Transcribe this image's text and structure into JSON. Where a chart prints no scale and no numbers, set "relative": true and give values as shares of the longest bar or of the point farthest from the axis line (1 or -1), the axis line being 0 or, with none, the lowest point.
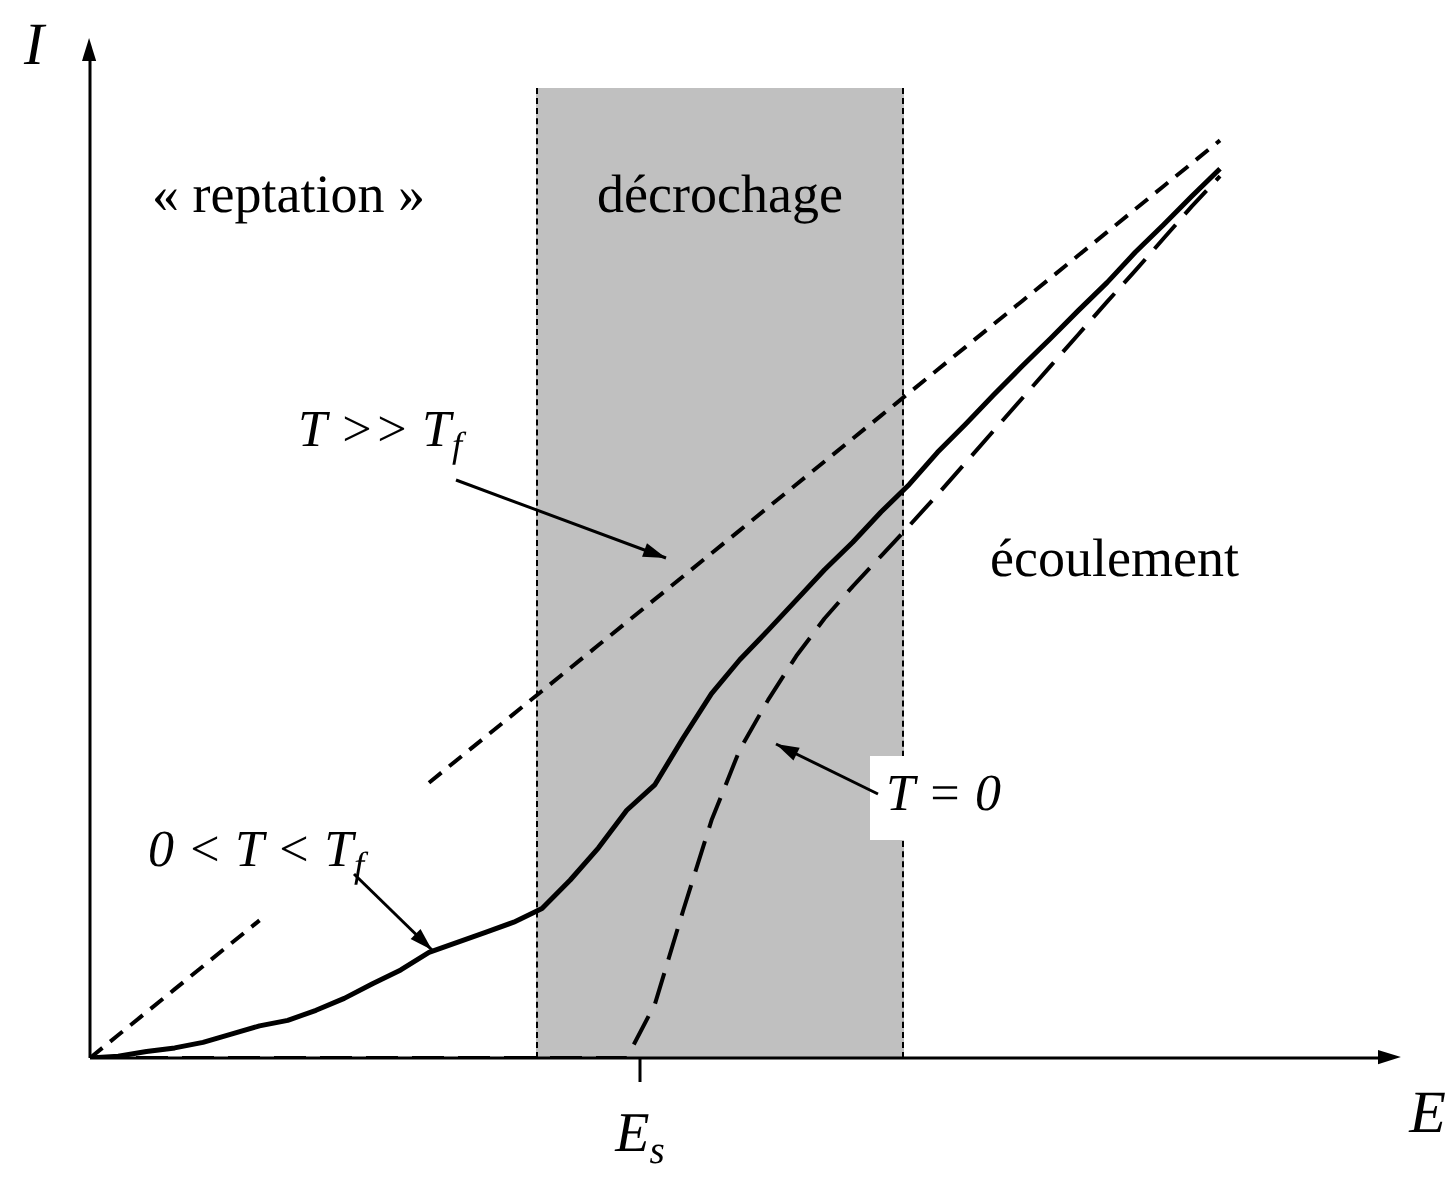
{
  "chart_data": {
    "type": "line",
    "relative": true,
    "xlabel": "E",
    "ylabel": "I",
    "legend": false,
    "marker": "none",
    "categories": [
      null,
      null,
      null,
      null,
      null,
      null,
      null,
      null,
      null,
      null,
      null,
      null,
      null,
      null,
      null,
      null,
      null,
      null,
      null,
      null,
      null,
      null,
      null,
      null,
      null,
      null,
      null,
      null,
      null,
      null,
      null,
      null,
      null,
      null,
      null,
      null,
      null,
      null,
      null,
      null,
      null
    ],
    "series": [
      {
        "color": "#000000",
        "line_style": "dashed",
        "values": [
          0,
          0.025,
          0.05,
          0.075,
          0.1,
          0.125,
          0.15,
          null,
          null,
          null,
          null,
          null,
          0.3,
          0.325,
          0.35,
          0.375,
          0.4,
          0.425,
          0.45,
          0.475,
          0.5,
          0.525,
          0.55,
          0.575,
          0.6,
          0.625,
          0.65,
          0.675,
          0.7,
          0.725,
          0.75,
          0.775,
          0.8,
          0.825,
          0.85,
          0.875,
          0.9,
          0.925,
          0.95,
          0.975,
          1.0
        ]
      },
      {
        "color": "#000000",
        "line_style": "solid",
        "values": [
          0,
          0.002,
          0.007,
          0.011,
          0.017,
          0.026,
          0.035,
          0.041,
          0.052,
          0.065,
          0.081,
          0.096,
          0.115,
          0.126,
          0.137,
          0.148,
          0.163,
          0.194,
          0.229,
          0.27,
          0.298,
          0.349,
          0.397,
          0.434,
          0.466,
          0.499,
          0.532,
          0.562,
          0.595,
          0.625,
          0.66,
          0.691,
          0.723,
          0.754,
          0.784,
          0.815,
          0.845,
          0.878,
          0.908,
          0.939,
          0.969
        ]
      },
      {
        "color": "#000000",
        "line_style": "dashed",
        "values": [
          0,
          0,
          0,
          0,
          0,
          0,
          0,
          0,
          0,
          0,
          0,
          0,
          0,
          0,
          0,
          0,
          0,
          0,
          0,
          0,
          0.059,
          0.161,
          0.259,
          0.336,
          0.39,
          0.438,
          0.479,
          0.514,
          0.547,
          0.58,
          0.614,
          0.649,
          0.684,
          0.719,
          0.754,
          0.789,
          0.824,
          0.858,
          0.893,
          0.928,
          0.961
        ]
      }
    ],
    "annotations": [
      "« reptation »",
      "écoulement",
      "décrochage",
      "T >> T$_{f}$",
      "0 < T < T$_{f}$",
      "T = 0",
      "E$_{s}$"
    ]
  }
}
